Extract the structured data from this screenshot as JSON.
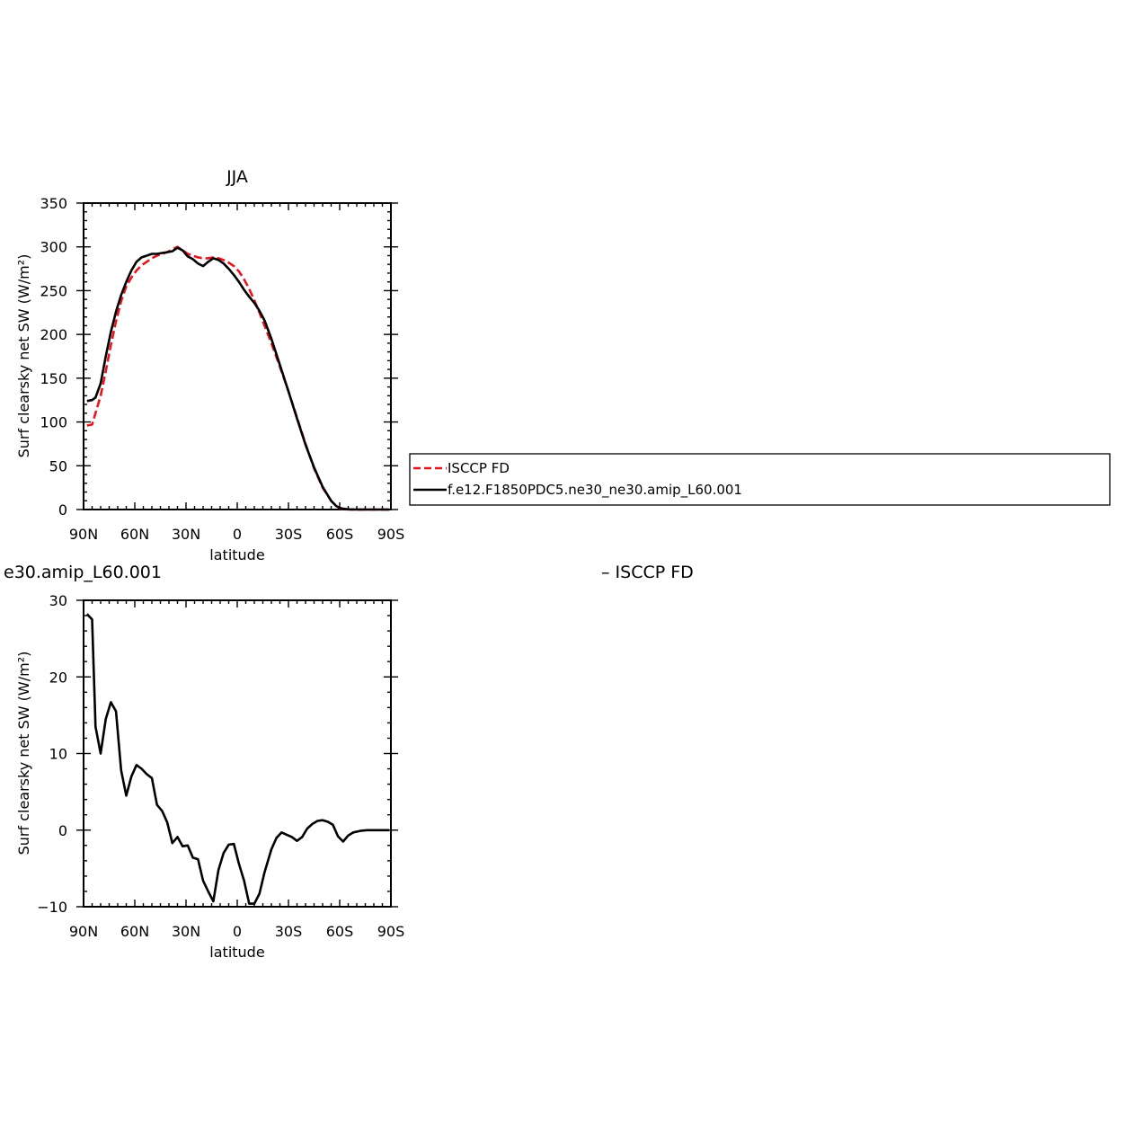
{
  "colors": {
    "model": "#000000",
    "obs": "#e8141e",
    "background": "#ffffff"
  },
  "chart_data": [
    {
      "type": "line",
      "title": "JJA",
      "xlabel": "latitude",
      "ylabel": "Surf clearsky net SW (W/m²)",
      "xlim": [
        90,
        -90
      ],
      "ylim": [
        0,
        350
      ],
      "xticks": [
        {
          "v": 90,
          "label": "90N"
        },
        {
          "v": 60,
          "label": "60N"
        },
        {
          "v": 30,
          "label": "30N"
        },
        {
          "v": 0,
          "label": "0"
        },
        {
          "v": -30,
          "label": "30S"
        },
        {
          "v": -60,
          "label": "60S"
        },
        {
          "v": -90,
          "label": "90S"
        }
      ],
      "yticks": [
        {
          "v": 0,
          "label": "0"
        },
        {
          "v": 50,
          "label": "50"
        },
        {
          "v": 100,
          "label": "100"
        },
        {
          "v": 150,
          "label": "150"
        },
        {
          "v": 200,
          "label": "200"
        },
        {
          "v": 250,
          "label": "250"
        },
        {
          "v": 300,
          "label": "300"
        },
        {
          "v": 350,
          "label": "350"
        }
      ],
      "legend": {
        "placement": "right of plot"
      },
      "series": [
        {
          "name": "ISCCP FD",
          "color": "#e8141e",
          "dash": true,
          "x": [
            88,
            85,
            83,
            80,
            77,
            74,
            71,
            68,
            65,
            62,
            59,
            56,
            53,
            50,
            47,
            44,
            41,
            38,
            35,
            32,
            29,
            26,
            23,
            20,
            17,
            14,
            11,
            8,
            5,
            2,
            -1,
            -4,
            -7,
            -10,
            -13,
            -16,
            -20,
            -25,
            -30,
            -35,
            -40,
            -45,
            -50,
            -55,
            -58,
            -60,
            -62,
            -64,
            -66,
            -70,
            -75,
            -80,
            -85,
            -89
          ],
          "y": [
            96,
            97,
            110,
            130,
            158,
            188,
            215,
            238,
            255,
            265,
            273,
            279,
            283,
            287,
            290,
            292,
            294,
            297,
            300,
            296,
            292,
            290,
            288,
            287,
            287,
            288,
            287,
            285,
            282,
            278,
            272,
            263,
            252,
            239,
            225,
            210,
            190,
            163,
            135,
            105,
            75,
            47,
            25,
            10,
            4,
            1.5,
            0.5,
            0.2,
            0,
            0,
            0,
            0,
            0,
            0
          ]
        },
        {
          "name": "f.e12.F1850PDC5.ne30_ne30.amip_L60.001",
          "color": "#000000",
          "dash": false,
          "x": [
            88,
            85,
            83,
            80,
            77,
            74,
            71,
            68,
            65,
            62,
            59,
            56,
            53,
            50,
            47,
            44,
            41,
            38,
            35,
            32,
            29,
            26,
            23,
            20,
            17,
            14,
            11,
            8,
            5,
            2,
            -1,
            -4,
            -7,
            -10,
            -13,
            -16,
            -20,
            -25,
            -30,
            -35,
            -40,
            -45,
            -50,
            -55,
            -58,
            -60,
            -62,
            -64,
            -66,
            -70,
            -75,
            -80,
            -85,
            -89
          ],
          "y": [
            124,
            125,
            128,
            144,
            175,
            203,
            226,
            245,
            260,
            273,
            283,
            288,
            290,
            292,
            292,
            293,
            294,
            295,
            299,
            296,
            289,
            286,
            281,
            278,
            283,
            287,
            285,
            281,
            275,
            268,
            260,
            251,
            243,
            236,
            227,
            216,
            195,
            165,
            135,
            104,
            74,
            48,
            26,
            10,
            4,
            2,
            1,
            0.5,
            0.2,
            0,
            0,
            0,
            0,
            0
          ]
        }
      ]
    },
    {
      "type": "line",
      "title": "e30.amip_L60.001",
      "title_right": "– ISCCP FD",
      "xlabel": "latitude",
      "ylabel": "Surf clearsky net SW (W/m²)",
      "xlim": [
        90,
        -90
      ],
      "ylim": [
        -10,
        30
      ],
      "xticks": [
        {
          "v": 90,
          "label": "90N"
        },
        {
          "v": 60,
          "label": "60N"
        },
        {
          "v": 30,
          "label": "30N"
        },
        {
          "v": 0,
          "label": "0"
        },
        {
          "v": -30,
          "label": "30S"
        },
        {
          "v": -60,
          "label": "60S"
        },
        {
          "v": -90,
          "label": "90S"
        }
      ],
      "yticks": [
        {
          "v": -10,
          "label": "−10"
        },
        {
          "v": 0,
          "label": "0"
        },
        {
          "v": 10,
          "label": "10"
        },
        {
          "v": 20,
          "label": "20"
        },
        {
          "v": 30,
          "label": "30"
        }
      ],
      "series": [
        {
          "name": "",
          "color": "#000000",
          "dash": false,
          "x": [
            88,
            85,
            83,
            80,
            77,
            74,
            71,
            68,
            65,
            62,
            59,
            56,
            53,
            50,
            47,
            44,
            41,
            38,
            35,
            32,
            29,
            26,
            23,
            20,
            17,
            14,
            11,
            8,
            5,
            2,
            -1,
            -4,
            -7,
            -10,
            -13,
            -16,
            -20,
            -23,
            -26,
            -29,
            -32,
            -35,
            -38,
            -41,
            -44,
            -47,
            -50,
            -53,
            -56,
            -59,
            -62,
            -65,
            -68,
            -72,
            -76,
            -80,
            -85,
            -89
          ],
          "y": [
            28.2,
            27.5,
            13.5,
            10,
            14.5,
            16.7,
            15.5,
            7.8,
            4.5,
            7,
            8.5,
            8,
            7.3,
            6.8,
            3.3,
            2.5,
            1,
            -1.7,
            -0.9,
            -2.1,
            -2,
            -3.6,
            -3.8,
            -6.6,
            -8,
            -9.3,
            -5.2,
            -3,
            -1.9,
            -1.8,
            -4.4,
            -6.6,
            -9.6,
            -9.6,
            -8.3,
            -5.5,
            -2.5,
            -1,
            -0.3,
            -0.6,
            -0.9,
            -1.4,
            -0.9,
            0.2,
            0.8,
            1.2,
            1.3,
            1.1,
            0.7,
            -0.8,
            -1.5,
            -0.7,
            -0.3,
            -0.1,
            0,
            0,
            0,
            0
          ]
        }
      ]
    }
  ]
}
